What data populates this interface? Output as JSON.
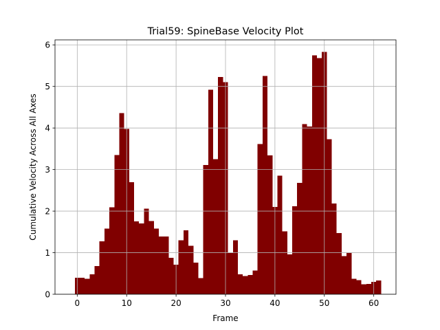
{
  "chart_data": {
    "type": "bar",
    "title": "Trial59: SpineBase Velocity Plot",
    "xlabel": "Frame",
    "ylabel": "Cumulative Velocity Across All Axes",
    "x": [
      0,
      1,
      2,
      3,
      4,
      5,
      6,
      7,
      8,
      9,
      10,
      11,
      12,
      13,
      14,
      15,
      16,
      17,
      18,
      19,
      20,
      21,
      22,
      23,
      24,
      25,
      26,
      27,
      28,
      29,
      30,
      31,
      32,
      33,
      34,
      35,
      36,
      37,
      38,
      39,
      40,
      41,
      42,
      43,
      44,
      45,
      46,
      47,
      48,
      49,
      50,
      51,
      52,
      53,
      54,
      55,
      56,
      57,
      58,
      59,
      60,
      61
    ],
    "values": [
      0.4,
      0.4,
      0.37,
      0.48,
      0.68,
      1.27,
      1.58,
      2.09,
      3.35,
      4.36,
      3.98,
      2.7,
      1.75,
      1.7,
      2.06,
      1.76,
      1.58,
      1.39,
      1.39,
      0.88,
      0.71,
      1.3,
      1.54,
      1.17,
      0.76,
      0.39,
      3.11,
      4.92,
      3.25,
      5.23,
      5.1,
      0.99,
      1.3,
      0.48,
      0.44,
      0.46,
      0.57,
      3.61,
      5.25,
      3.34,
      2.1,
      2.85,
      1.51,
      0.96,
      2.12,
      2.68,
      4.09,
      4.04,
      5.75,
      5.68,
      5.83,
      3.73,
      2.18,
      1.47,
      0.92,
      0.99,
      0.37,
      0.34,
      0.24,
      0.25,
      0.3,
      0.33
    ],
    "xlim": [
      -4.5,
      64.5
    ],
    "ylim": [
      0,
      6.12
    ],
    "xticks": [
      "0",
      "10",
      "20",
      "30",
      "40",
      "50",
      "60"
    ],
    "yticks": [
      "0",
      "1",
      "2",
      "3",
      "4",
      "5",
      "6"
    ],
    "bar_color": "#800000",
    "grid": true,
    "legend": "none"
  }
}
